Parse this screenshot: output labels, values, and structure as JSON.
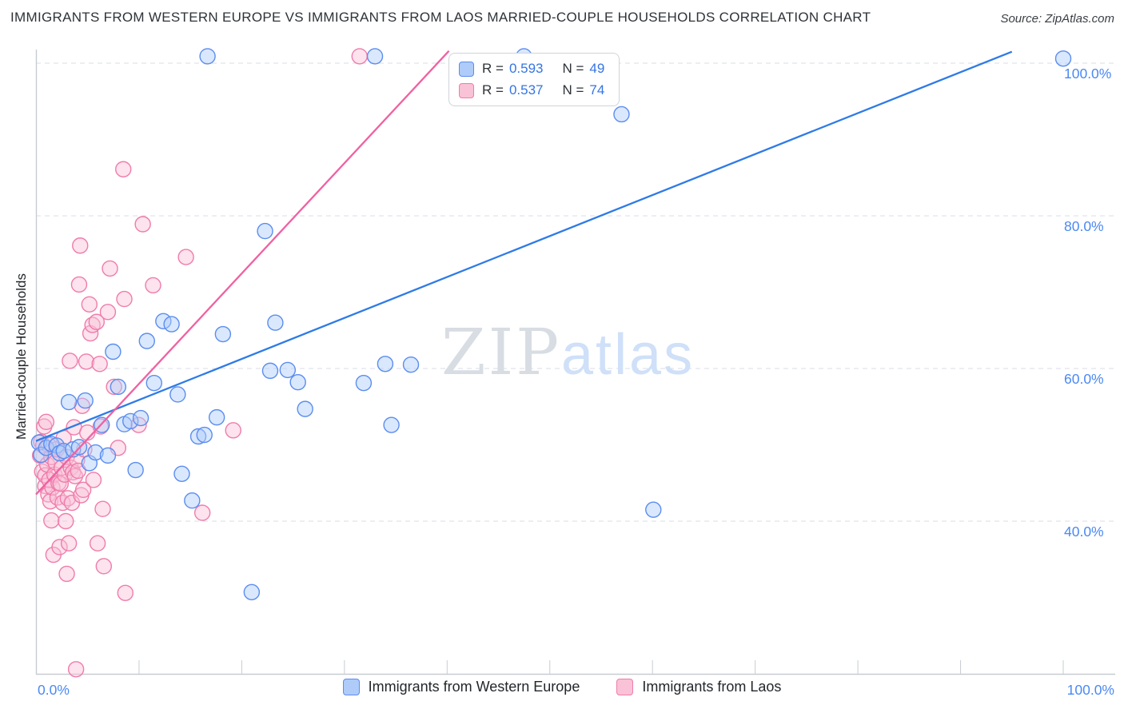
{
  "header": {
    "title": "IMMIGRANTS FROM WESTERN EUROPE VS IMMIGRANTS FROM LAOS MARRIED-COUPLE HOUSEHOLDS CORRELATION CHART",
    "source": "Source: ZipAtlas.com"
  },
  "watermark": {
    "part1": "ZIP",
    "part2": "atlas"
  },
  "legend_box": {
    "rows": [
      {
        "r_label": "R =",
        "r_value": "0.593",
        "n_label": "N =",
        "n_value": "49",
        "fill": "#aecbfa",
        "stroke": "#5b8def"
      },
      {
        "r_label": "R =",
        "r_value": "0.537",
        "n_label": "N =",
        "n_value": "74",
        "fill": "#f9c2d6",
        "stroke": "#f07cab"
      }
    ]
  },
  "bottom_legend": {
    "items": [
      {
        "label": "Immigrants from Western Europe",
        "fill": "#aecbfa",
        "stroke": "#5b8def"
      },
      {
        "label": "Immigrants from Laos",
        "fill": "#f9c2d6",
        "stroke": "#f07cab"
      }
    ]
  },
  "colors": {
    "axis": "#c7ccd2",
    "gridline": "#d9dee5",
    "tick_label_blue": "#4a89f3",
    "watermark_zip": "#d8dde3",
    "watermark_atlas": "#cfe0f8"
  },
  "chart_data": {
    "type": "scatter",
    "title": "Immigrants from Western Europe vs Immigrants from Laos Married-couple Households",
    "xlabel": "",
    "ylabel": "Married-couple Households",
    "xlim": [
      0,
      105
    ],
    "ylim": [
      20,
      102
    ],
    "grid": "dashed-horizontal",
    "legend_position": "top-center",
    "x_tick_labels": {
      "left": "0.0%",
      "right": "100.0%"
    },
    "y_gridlines": [
      {
        "value": 100,
        "label": "100.0%"
      },
      {
        "value": 80,
        "label": "80.0%"
      },
      {
        "value": 60,
        "label": "60.0%"
      },
      {
        "value": 40,
        "label": "40.0%"
      }
    ],
    "series": [
      {
        "name": "Immigrants from Western Europe",
        "R": 0.593,
        "N": 49,
        "marker_fill": "#aecbfa",
        "marker_stroke": "#5b8def",
        "points": [
          [
            0.3,
            50.3
          ],
          [
            0.5,
            48.7
          ],
          [
            1.0,
            49.6
          ],
          [
            1.5,
            50.1
          ],
          [
            2.0,
            49.9
          ],
          [
            2.3,
            48.9
          ],
          [
            2.7,
            49.2
          ],
          [
            3.2,
            55.6
          ],
          [
            3.6,
            49.4
          ],
          [
            4.2,
            49.7
          ],
          [
            4.8,
            55.8
          ],
          [
            5.2,
            47.6
          ],
          [
            5.8,
            49.0
          ],
          [
            6.4,
            52.6
          ],
          [
            7.0,
            48.6
          ],
          [
            7.5,
            62.2
          ],
          [
            8.0,
            57.6
          ],
          [
            8.6,
            52.7
          ],
          [
            9.2,
            53.1
          ],
          [
            9.7,
            46.7
          ],
          [
            10.2,
            53.5
          ],
          [
            10.8,
            63.6
          ],
          [
            11.5,
            58.1
          ],
          [
            12.4,
            66.2
          ],
          [
            13.2,
            65.8
          ],
          [
            13.8,
            56.6
          ],
          [
            14.2,
            46.2
          ],
          [
            15.2,
            42.7
          ],
          [
            15.8,
            51.1
          ],
          [
            16.4,
            51.3
          ],
          [
            16.7,
            100.9
          ],
          [
            17.6,
            53.6
          ],
          [
            18.2,
            64.5
          ],
          [
            21.0,
            30.7
          ],
          [
            22.3,
            78.0
          ],
          [
            22.8,
            59.7
          ],
          [
            23.3,
            66.0
          ],
          [
            24.5,
            59.8
          ],
          [
            25.5,
            58.2
          ],
          [
            26.2,
            54.7
          ],
          [
            31.9,
            58.1
          ],
          [
            33.0,
            100.9
          ],
          [
            34.0,
            60.6
          ],
          [
            34.6,
            52.6
          ],
          [
            36.5,
            60.5
          ],
          [
            47.5,
            100.9
          ],
          [
            57.0,
            93.3
          ],
          [
            60.1,
            41.5
          ],
          [
            100.0,
            100.6
          ]
        ]
      },
      {
        "name": "Immigrants from Laos",
        "R": 0.537,
        "N": 74,
        "marker_fill": "#f9c2d6",
        "marker_stroke": "#f07cab",
        "points": [
          [
            0.4,
            48.6
          ],
          [
            0.5,
            50.4
          ],
          [
            0.6,
            46.5
          ],
          [
            0.7,
            49.9
          ],
          [
            0.8,
            52.4
          ],
          [
            0.9,
            44.6
          ],
          [
            0.9,
            46.0
          ],
          [
            1.0,
            53.0
          ],
          [
            1.1,
            47.4
          ],
          [
            1.2,
            50.0
          ],
          [
            1.2,
            43.5
          ],
          [
            1.3,
            45.4
          ],
          [
            1.4,
            42.6
          ],
          [
            1.5,
            48.4
          ],
          [
            1.5,
            40.1
          ],
          [
            1.6,
            44.4
          ],
          [
            1.7,
            35.6
          ],
          [
            1.8,
            46.1
          ],
          [
            1.9,
            47.7
          ],
          [
            2.0,
            49.4
          ],
          [
            2.1,
            43.1
          ],
          [
            2.2,
            45.0
          ],
          [
            2.3,
            36.6
          ],
          [
            2.4,
            44.9
          ],
          [
            2.5,
            47.0
          ],
          [
            2.6,
            42.4
          ],
          [
            2.7,
            50.9
          ],
          [
            2.8,
            46.1
          ],
          [
            2.9,
            40.0
          ],
          [
            3.0,
            48.4
          ],
          [
            3.0,
            33.1
          ],
          [
            3.1,
            43.0
          ],
          [
            3.2,
            37.1
          ],
          [
            3.3,
            61.0
          ],
          [
            3.4,
            47.0
          ],
          [
            3.5,
            42.4
          ],
          [
            3.6,
            46.4
          ],
          [
            3.7,
            52.3
          ],
          [
            3.8,
            45.9
          ],
          [
            3.9,
            20.6
          ],
          [
            4.0,
            48.0
          ],
          [
            4.1,
            46.6
          ],
          [
            4.2,
            71.0
          ],
          [
            4.3,
            76.1
          ],
          [
            4.4,
            43.4
          ],
          [
            4.5,
            55.1
          ],
          [
            4.6,
            44.1
          ],
          [
            4.7,
            49.4
          ],
          [
            4.9,
            60.9
          ],
          [
            5.0,
            51.6
          ],
          [
            5.2,
            68.4
          ],
          [
            5.3,
            64.6
          ],
          [
            5.5,
            65.7
          ],
          [
            5.6,
            45.4
          ],
          [
            5.9,
            66.1
          ],
          [
            6.0,
            37.1
          ],
          [
            6.2,
            60.6
          ],
          [
            6.3,
            52.4
          ],
          [
            6.5,
            41.6
          ],
          [
            6.6,
            34.1
          ],
          [
            7.0,
            67.4
          ],
          [
            7.2,
            73.1
          ],
          [
            7.6,
            57.6
          ],
          [
            8.0,
            49.6
          ],
          [
            8.5,
            86.1
          ],
          [
            8.6,
            69.1
          ],
          [
            8.7,
            30.6
          ],
          [
            10.0,
            52.6
          ],
          [
            10.4,
            78.9
          ],
          [
            11.4,
            70.9
          ],
          [
            14.6,
            74.6
          ],
          [
            16.2,
            41.1
          ],
          [
            19.2,
            51.9
          ],
          [
            31.5,
            100.9
          ]
        ]
      }
    ],
    "trend_lines": [
      {
        "series": "Immigrants from Western Europe",
        "color": "#2e7be6",
        "from": [
          0,
          50.5
        ],
        "to": [
          95,
          101.5
        ]
      },
      {
        "series": "Immigrants from Laos",
        "color": "#f061a2",
        "from": [
          0,
          43.5
        ],
        "to": [
          40.2,
          101.6
        ]
      }
    ]
  }
}
